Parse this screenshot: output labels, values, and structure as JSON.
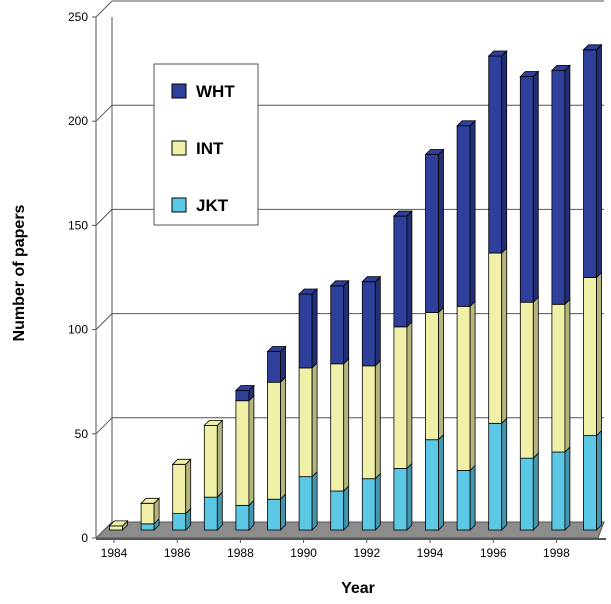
{
  "chart_data": {
    "type": "bar",
    "stacked": true,
    "three_d": true,
    "title": "",
    "xlabel": "Year",
    "ylabel": "Number of papers",
    "ylim": [
      0,
      250
    ],
    "yticks": [
      0,
      50,
      100,
      150,
      200,
      250
    ],
    "grid": true,
    "legend_position": "top-left",
    "categories": [
      "1984",
      "1985",
      "1986",
      "1987",
      "1988",
      "1989",
      "1990",
      "1991",
      "1992",
      "1993",
      "1994",
      "1995",
      "1996",
      "1997",
      "1998",
      "1999"
    ],
    "xtick_labels": [
      "1984",
      "1986",
      "1988",
      "1990",
      "1992",
      "1994",
      "1996",
      "1998"
    ],
    "series": [
      {
        "name": "JKT",
        "color": "#5bc8e6",
        "values": [
          0,
          3,
          8,
          16,
          12,
          15,
          26,
          19,
          25,
          30,
          44,
          29,
          52,
          35,
          38,
          46
        ]
      },
      {
        "name": "INT",
        "color": "#f0f0a8",
        "values": [
          2,
          10,
          24,
          35,
          51,
          57,
          53,
          62,
          55,
          69,
          62,
          80,
          83,
          76,
          72,
          77
        ]
      },
      {
        "name": "WHT",
        "color": "#2e3f9c",
        "values": [
          0,
          0,
          0,
          0,
          5,
          15,
          36,
          38,
          41,
          54,
          77,
          88,
          96,
          110,
          114,
          111
        ]
      }
    ]
  }
}
